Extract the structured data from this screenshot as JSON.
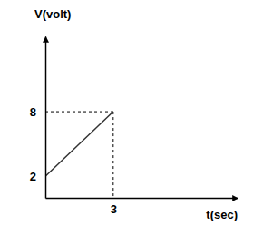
{
  "chart_data": {
    "type": "line",
    "x_label": "t(sec)",
    "y_label": "V(volt)",
    "x": [
      0,
      3
    ],
    "values": [
      2,
      8
    ],
    "color": "#333333",
    "xlim": [
      0,
      8.5
    ],
    "xticks": [
      3
    ],
    "ylim": [
      0,
      15
    ],
    "yticks": [
      2,
      8
    ]
  }
}
